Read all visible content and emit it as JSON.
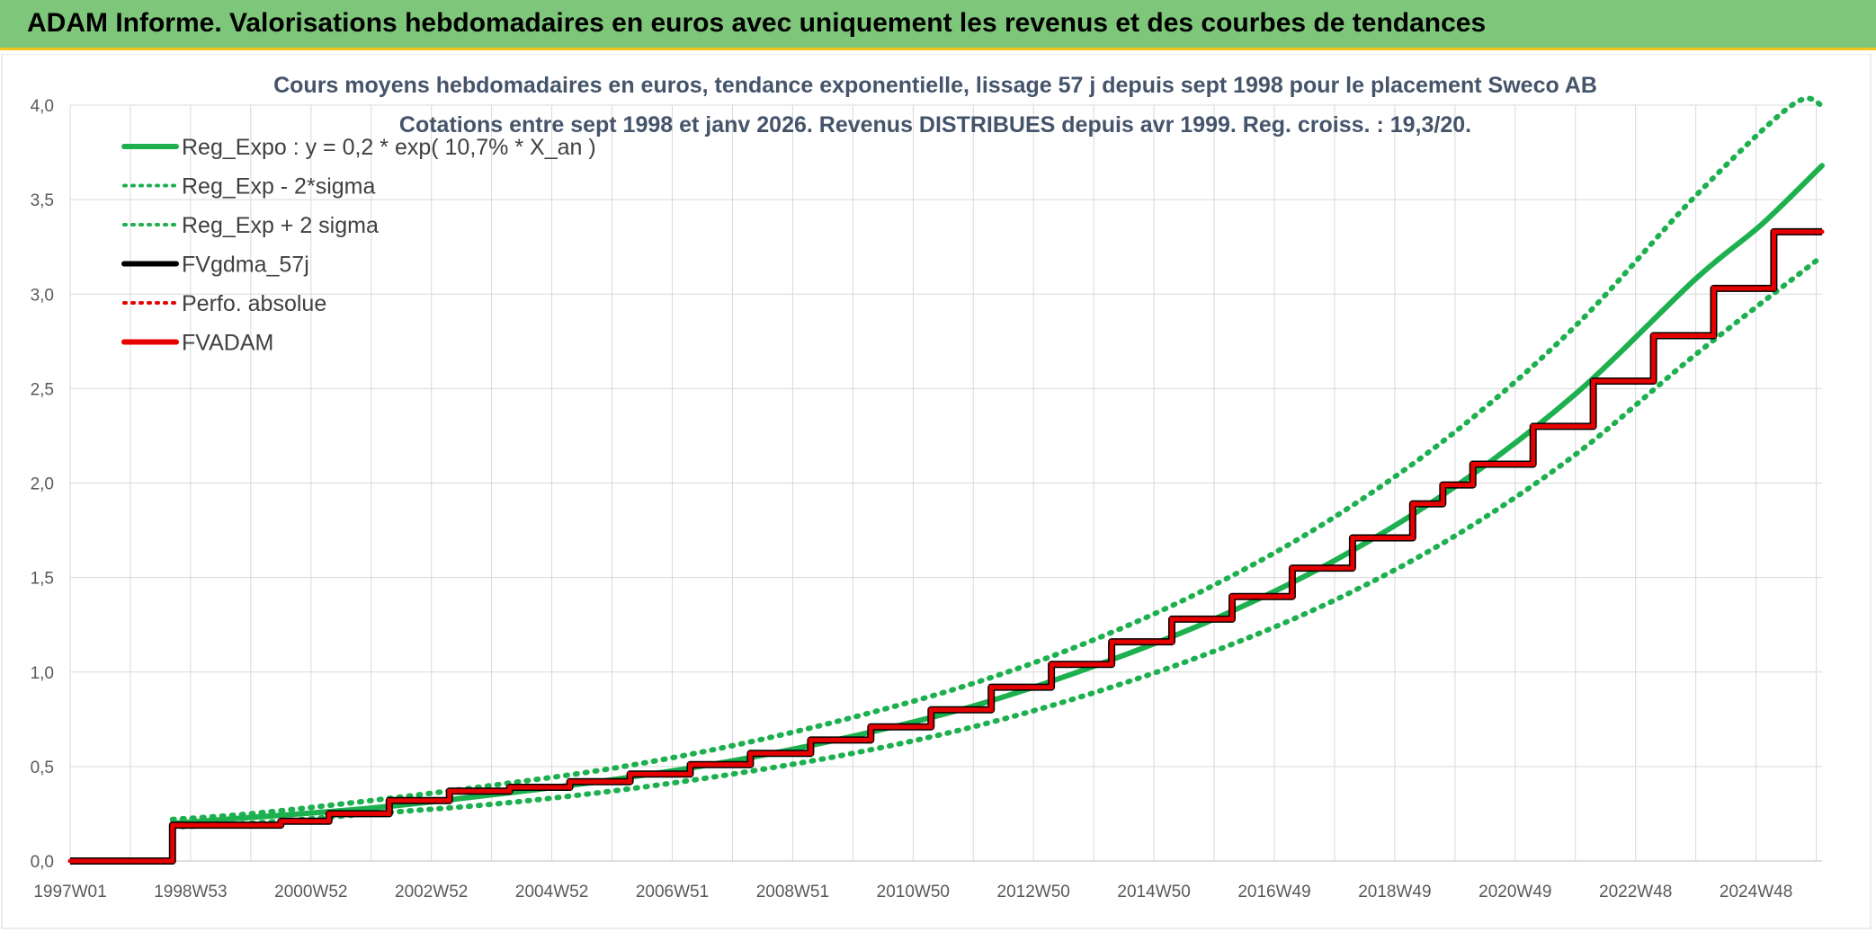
{
  "header": {
    "title": "ADAM Informe. Valorisations hebdomadaires en euros avec uniquement les revenus et des courbes de tendances"
  },
  "colors": {
    "banner": "#7ec67a",
    "banner_border": "#f3c41a",
    "reg_expo": "#1db04f",
    "fvgdma": "#000000",
    "fvadam": "#e60000",
    "perfo": "#e60000"
  },
  "chart_data": {
    "type": "line",
    "title": "Cours moyens hebdomadaires en euros, tendance exponentielle, lissage 57 j depuis sept 1998 pour le placement Sweco AB",
    "subtitle": "Cotations entre sept 1998 et janv 2026. Revenus DISTRIBUES depuis avr 1999. Reg. croiss. : 19,3/20.",
    "xlabel": "",
    "ylabel": "",
    "x_tick_labels": [
      "1997W01",
      "1998W53",
      "2000W52",
      "2002W52",
      "2004W52",
      "2006W51",
      "2008W51",
      "2010W50",
      "2012W50",
      "2014W50",
      "2016W49",
      "2018W49",
      "2020W49",
      "2022W48",
      "2024W48"
    ],
    "y_tick_labels": [
      "0,0",
      "0,5",
      "1,0",
      "1,5",
      "2,0",
      "2,5",
      "3,0",
      "3,5",
      "4,0"
    ],
    "xlim": [
      1997.0,
      2026.1
    ],
    "ylim": [
      0,
      4
    ],
    "grid": true,
    "legend_position": "top-left",
    "legend": [
      "Reg_Expo : y = 0,2 * exp( 10,7% *  X_an )",
      "Reg_Exp - 2*sigma",
      "Reg_Exp + 2 sigma",
      "FVgdma_57j",
      "Perfo. absolue",
      "FVADAM"
    ],
    "series": [
      {
        "name": "Reg_Expo : y = 0,2 * exp( 10,7% *  X_an )",
        "style": "solid",
        "color": "#1db04f",
        "x": [
          1998.7,
          2000.0,
          2002.0,
          2004.0,
          2006.0,
          2008.0,
          2010.0,
          2012.0,
          2014.0,
          2016.0,
          2018.0,
          2020.0,
          2022.0,
          2024.0,
          2025.1,
          2026.1
        ],
        "y": [
          0.2,
          0.23,
          0.28,
          0.35,
          0.43,
          0.53,
          0.66,
          0.82,
          1.03,
          1.28,
          1.59,
          1.98,
          2.47,
          3.08,
          3.37,
          3.68
        ]
      },
      {
        "name": "Reg_Exp - 2*sigma",
        "style": "dotted",
        "color": "#1db04f",
        "x": [
          1998.7,
          2000.0,
          2002.0,
          2004.0,
          2006.0,
          2008.0,
          2010.0,
          2012.0,
          2014.0,
          2016.0,
          2018.0,
          2020.0,
          2022.0,
          2024.0,
          2026.1
        ],
        "y": [
          0.18,
          0.2,
          0.25,
          0.3,
          0.37,
          0.46,
          0.57,
          0.71,
          0.89,
          1.11,
          1.38,
          1.72,
          2.15,
          2.68,
          3.2
        ]
      },
      {
        "name": "Reg_Exp + 2 sigma",
        "style": "dotted",
        "color": "#1db04f",
        "x": [
          1998.7,
          2000.0,
          2002.0,
          2004.0,
          2006.0,
          2008.0,
          2010.0,
          2012.0,
          2014.0,
          2016.0,
          2018.0,
          2020.0,
          2022.0,
          2024.0,
          2025.6,
          2026.1
        ],
        "y": [
          0.22,
          0.25,
          0.32,
          0.4,
          0.49,
          0.61,
          0.76,
          0.94,
          1.17,
          1.46,
          1.82,
          2.27,
          2.83,
          3.52,
          4.0,
          4.0
        ]
      },
      {
        "name": "FVgdma_57j",
        "style": "solid",
        "color": "#000000",
        "x": [],
        "y": []
      },
      {
        "name": "Perfo. absolue",
        "style": "dotted",
        "color": "#e60000",
        "x": [],
        "y": []
      },
      {
        "name": "FVADAM",
        "style": "solid",
        "color": "#e60000",
        "x": [
          1997.0,
          1998.7,
          1998.7,
          2000.5,
          2001.3,
          2002.3,
          2003.3,
          2004.3,
          2005.3,
          2006.3,
          2007.3,
          2008.3,
          2009.3,
          2010.3,
          2011.3,
          2012.3,
          2013.3,
          2014.3,
          2015.3,
          2016.3,
          2017.3,
          2018.3,
          2019.3,
          2019.8,
          2020.3,
          2021.3,
          2022.3,
          2023.3,
          2024.3,
          2025.3,
          2026.1
        ],
        "y": [
          0.0,
          0.0,
          0.19,
          0.21,
          0.25,
          0.32,
          0.37,
          0.39,
          0.42,
          0.46,
          0.51,
          0.57,
          0.64,
          0.71,
          0.8,
          0.92,
          1.04,
          1.16,
          1.28,
          1.4,
          1.55,
          1.71,
          1.89,
          1.99,
          2.1,
          2.3,
          2.54,
          2.78,
          3.03,
          3.33,
          3.33
        ]
      }
    ]
  }
}
